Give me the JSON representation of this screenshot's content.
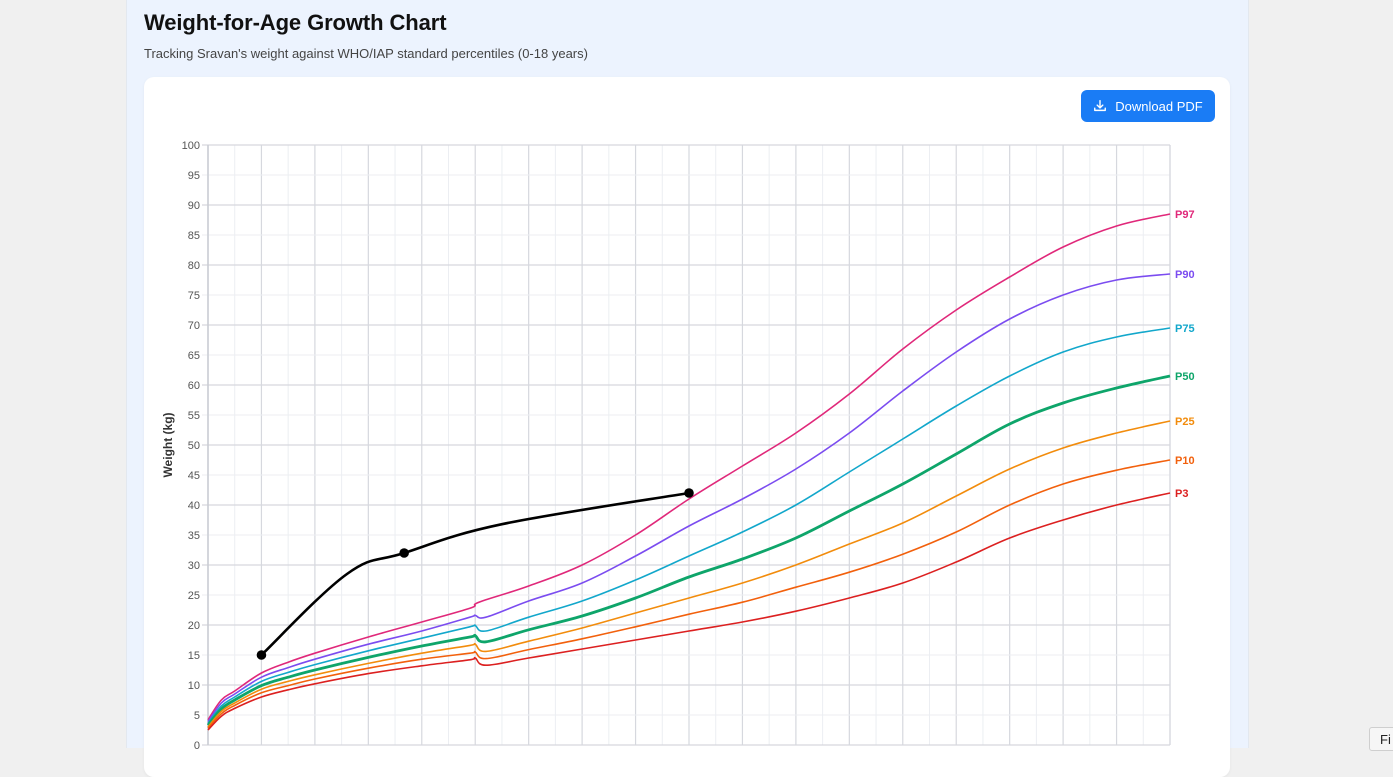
{
  "header": {
    "title": "Weight-for-Age Growth Chart",
    "subtitle": "Tracking Sravan's weight against WHO/IAP standard percentiles (0-18 years)"
  },
  "toolbar": {
    "download_label": "Download PDF",
    "download_icon": "download-icon"
  },
  "find_bar": {
    "label": "Fi"
  },
  "colors": {
    "primary_button": "#1a7cf5",
    "child_line": "#000000",
    "P97": "#e0287a",
    "P90": "#7b4cf0",
    "P75": "#12a7cb",
    "P50": "#0ea56a",
    "P25": "#f28c0c",
    "P10": "#f2600c",
    "P3": "#dc2020"
  },
  "chart_data": {
    "type": "line",
    "title": "Weight-for-Age Growth Chart",
    "xlabel": "",
    "ylabel": "Weight (kg)",
    "xlim": [
      0,
      18
    ],
    "ylim": [
      0,
      100
    ],
    "yticks": [
      0,
      5,
      10,
      15,
      20,
      25,
      30,
      35,
      40,
      45,
      50,
      55,
      60,
      65,
      70,
      75,
      80,
      85,
      90,
      95,
      100
    ],
    "grid": true,
    "legend_position": "inline-right-end-labels",
    "x": [
      0,
      0.25,
      0.5,
      1,
      1.5,
      2,
      3,
      4,
      4.9,
      5,
      5.2,
      6,
      7,
      8,
      9,
      10,
      11,
      12,
      13,
      14,
      15,
      16,
      17,
      18
    ],
    "series": [
      {
        "name": "P97",
        "values": [
          4.2,
          7.5,
          9.0,
          12.0,
          13.8,
          15.3,
          18.0,
          20.5,
          22.8,
          23.5,
          24.2,
          26.5,
          30.0,
          35.0,
          41.0,
          46.5,
          52.0,
          58.5,
          66.0,
          72.5,
          78.0,
          83.0,
          86.5,
          88.5
        ]
      },
      {
        "name": "P90",
        "values": [
          3.9,
          7.0,
          8.5,
          11.3,
          12.9,
          14.3,
          16.8,
          19.0,
          21.3,
          21.6,
          21.3,
          24.0,
          27.0,
          31.5,
          36.5,
          41.0,
          46.0,
          52.0,
          59.0,
          65.5,
          71.0,
          75.0,
          77.5,
          78.5
        ]
      },
      {
        "name": "P75",
        "values": [
          3.6,
          6.5,
          8.0,
          10.6,
          12.1,
          13.4,
          15.7,
          17.8,
          19.7,
          19.9,
          19.0,
          21.3,
          24.0,
          27.5,
          31.5,
          35.5,
          40.0,
          45.5,
          51.0,
          56.5,
          61.5,
          65.5,
          68.0,
          69.5
        ]
      },
      {
        "name": "P50",
        "values": [
          3.3,
          6.0,
          7.5,
          9.9,
          11.3,
          12.5,
          14.6,
          16.5,
          18.0,
          18.2,
          17.2,
          19.2,
          21.5,
          24.5,
          28.0,
          31.0,
          34.5,
          39.0,
          43.5,
          48.5,
          53.5,
          57.0,
          59.5,
          61.5
        ]
      },
      {
        "name": "P25",
        "values": [
          3.0,
          5.6,
          7.0,
          9.3,
          10.6,
          11.7,
          13.6,
          15.3,
          16.6,
          16.8,
          15.6,
          17.3,
          19.5,
          22.0,
          24.5,
          27.0,
          30.0,
          33.5,
          37.0,
          41.5,
          46.0,
          49.5,
          52.0,
          54.0
        ]
      },
      {
        "name": "P10",
        "values": [
          2.8,
          5.2,
          6.6,
          8.7,
          9.9,
          11.0,
          12.8,
          14.3,
          15.3,
          15.5,
          14.4,
          15.9,
          17.7,
          19.7,
          21.8,
          23.8,
          26.3,
          28.8,
          31.8,
          35.5,
          40.0,
          43.5,
          45.8,
          47.5
        ]
      },
      {
        "name": "P3",
        "values": [
          2.5,
          4.8,
          6.1,
          8.0,
          9.2,
          10.2,
          11.9,
          13.2,
          14.2,
          14.5,
          13.3,
          14.5,
          16.0,
          17.5,
          19.0,
          20.5,
          22.3,
          24.5,
          27.0,
          30.5,
          34.5,
          37.5,
          40.0,
          42.0
        ]
      }
    ],
    "child": {
      "name": "Sravan",
      "points": [
        {
          "age": 1.0,
          "weight": 15
        },
        {
          "age": 3.67,
          "weight": 32
        },
        {
          "age": 9.0,
          "weight": 42
        }
      ]
    },
    "end_labels": [
      "P97",
      "P90",
      "P75",
      "P50",
      "P25",
      "P10",
      "P3"
    ]
  }
}
